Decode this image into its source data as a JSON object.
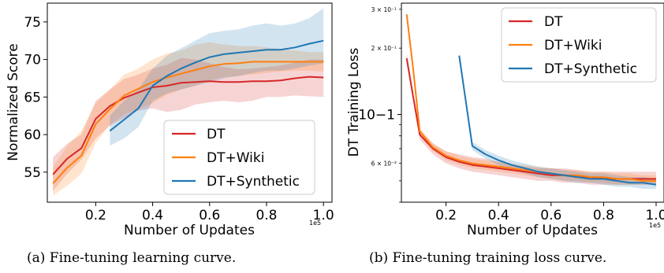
{
  "chart_data": [
    {
      "type": "line",
      "caption": "(a) Fine-tuning learning curve.",
      "xlabel": "Number of Updates",
      "ylabel": "Normalized Score",
      "x_offset_text": "1e5",
      "xlim": [
        0.03,
        1.03
      ],
      "ylim": [
        51,
        77.5
      ],
      "xticks": [
        0.2,
        0.4,
        0.6,
        0.8,
        1.0
      ],
      "xtick_labels": [
        "0.2",
        "0.4",
        "0.6",
        "0.8",
        "1.0"
      ],
      "yticks": [
        55,
        60,
        65,
        70,
        75
      ],
      "ytick_labels": [
        "55",
        "60",
        "65",
        "70",
        "75"
      ],
      "grid": false,
      "legend": "bottom-right",
      "series": [
        {
          "name": "DT",
          "color": "#d62728",
          "x": [
            0.05,
            0.1,
            0.15,
            0.2,
            0.25,
            0.3,
            0.35,
            0.4,
            0.45,
            0.5,
            0.55,
            0.6,
            0.65,
            0.7,
            0.75,
            0.8,
            0.85,
            0.9,
            0.95,
            1.0
          ],
          "y": [
            54.7,
            56.8,
            58.2,
            62.1,
            63.8,
            64.9,
            65.6,
            66.3,
            66.5,
            66.9,
            67.0,
            67.1,
            67.0,
            67.0,
            67.1,
            67.1,
            67.2,
            67.5,
            67.7,
            67.6
          ],
          "lower": [
            52.5,
            54.8,
            56.7,
            59.5,
            61.2,
            62.2,
            63.2,
            63.5,
            63.0,
            63.3,
            64.0,
            64.3,
            64.5,
            64.3,
            64.5,
            65.0,
            65.0,
            65.2,
            65.1,
            65.0
          ],
          "upper": [
            57.0,
            58.8,
            60.0,
            64.5,
            66.0,
            67.4,
            68.0,
            68.8,
            69.3,
            70.2,
            70.0,
            69.5,
            69.0,
            68.7,
            68.8,
            69.0,
            69.2,
            69.6,
            70.0,
            70.0
          ]
        },
        {
          "name": "DT+Wiki",
          "color": "#ff7f0e",
          "x": [
            0.05,
            0.1,
            0.15,
            0.2,
            0.25,
            0.3,
            0.35,
            0.4,
            0.45,
            0.5,
            0.55,
            0.6,
            0.65,
            0.7,
            0.75,
            0.8,
            0.85,
            0.9,
            0.95,
            1.0
          ],
          "y": [
            53.5,
            55.6,
            57.2,
            61.4,
            63.4,
            65.2,
            66.1,
            67.0,
            67.6,
            68.1,
            68.6,
            69.1,
            69.4,
            69.5,
            69.7,
            69.7,
            69.7,
            69.7,
            69.7,
            69.7
          ],
          "lower": [
            51.9,
            53.2,
            54.8,
            58.9,
            61.3,
            62.7,
            63.4,
            64.2,
            65.3,
            66.0,
            66.5,
            67.2,
            67.7,
            67.8,
            68.0,
            68.2,
            68.4,
            68.5,
            68.5,
            68.4
          ],
          "upper": [
            55.7,
            58.5,
            60.5,
            64.2,
            66.0,
            68.0,
            68.8,
            70.0,
            70.8,
            71.2,
            72.0,
            72.3,
            72.0,
            71.8,
            71.8,
            71.6,
            71.4,
            71.2,
            71.0,
            71.0
          ]
        },
        {
          "name": "DT+Synthetic",
          "color": "#1f77b4",
          "x": [
            0.25,
            0.3,
            0.35,
            0.4,
            0.45,
            0.5,
            0.55,
            0.6,
            0.65,
            0.7,
            0.75,
            0.8,
            0.85,
            0.9,
            0.95,
            1.0
          ],
          "y": [
            60.5,
            62.0,
            63.5,
            66.5,
            67.8,
            68.8,
            69.6,
            70.3,
            70.7,
            70.9,
            71.1,
            71.3,
            71.3,
            71.6,
            72.1,
            72.5
          ],
          "lower": [
            58.5,
            59.5,
            61.0,
            64.5,
            65.5,
            66.0,
            66.5,
            67.0,
            67.5,
            67.8,
            68.2,
            68.5,
            68.5,
            68.8,
            69.2,
            69.5
          ],
          "upper": [
            62.5,
            64.5,
            66.0,
            68.8,
            70.5,
            71.5,
            72.5,
            73.5,
            73.8,
            74.0,
            74.5,
            74.8,
            74.5,
            74.8,
            75.5,
            76.8
          ]
        }
      ]
    },
    {
      "type": "line",
      "caption": "(b) Fine-tuning training loss curve.",
      "xlabel": "Number of Updates",
      "ylabel": "DT Training Loss",
      "x_offset_text": "1e5",
      "yscale": "log",
      "xlim": [
        0.03,
        1.03
      ],
      "ylim": [
        0.04,
        0.32
      ],
      "xticks": [
        0.2,
        0.4,
        0.6,
        0.8,
        1.0
      ],
      "xtick_labels": [
        "0.2",
        "0.4",
        "0.6",
        "0.8",
        "1.0"
      ],
      "yticks": [
        0.1
      ],
      "ytick_labels": [
        "10−1"
      ],
      "yminor_ticks": [
        0.06,
        0.2,
        0.3
      ],
      "yminor_tick_labels": [
        "6 × 10⁻²",
        "2 × 10⁻¹",
        "3 × 10⁻¹"
      ],
      "grid": false,
      "legend": "top-right",
      "series": [
        {
          "name": "DT",
          "color": "#d62728",
          "x": [
            0.05,
            0.075,
            0.1,
            0.15,
            0.2,
            0.25,
            0.3,
            0.35,
            0.4,
            0.45,
            0.5,
            0.55,
            0.6,
            0.65,
            0.7,
            0.75,
            0.8,
            0.85,
            0.9,
            0.95,
            1.0
          ],
          "y": [
            0.18,
            0.12,
            0.081,
            0.07,
            0.064,
            0.061,
            0.059,
            0.058,
            0.057,
            0.056,
            0.055,
            0.054,
            0.053,
            0.053,
            0.052,
            0.052,
            0.051,
            0.051,
            0.051,
            0.051,
            0.051
          ],
          "lower": [
            0.17,
            0.115,
            0.077,
            0.066,
            0.06,
            0.057,
            0.055,
            0.054,
            0.053,
            0.052,
            0.051,
            0.05,
            0.05,
            0.049,
            0.049,
            0.048,
            0.048,
            0.048,
            0.048,
            0.048,
            0.048
          ],
          "upper": [
            0.19,
            0.126,
            0.085,
            0.074,
            0.068,
            0.066,
            0.064,
            0.063,
            0.061,
            0.059,
            0.058,
            0.057,
            0.057,
            0.057,
            0.056,
            0.055,
            0.055,
            0.055,
            0.055,
            0.055,
            0.055
          ]
        },
        {
          "name": "DT+Wiki",
          "color": "#ff7f0e",
          "x": [
            0.05,
            0.075,
            0.1,
            0.15,
            0.2,
            0.25,
            0.3,
            0.35,
            0.4,
            0.45,
            0.5,
            0.55,
            0.6,
            0.65,
            0.7,
            0.75,
            0.8,
            0.85,
            0.9,
            0.95,
            1.0
          ],
          "y": [
            0.285,
            0.16,
            0.084,
            0.071,
            0.065,
            0.062,
            0.06,
            0.059,
            0.058,
            0.057,
            0.056,
            0.055,
            0.054,
            0.053,
            0.053,
            0.052,
            0.052,
            0.051,
            0.051,
            0.05,
            0.05
          ],
          "lower": [
            0.275,
            0.155,
            0.081,
            0.068,
            0.062,
            0.059,
            0.057,
            0.056,
            0.055,
            0.054,
            0.053,
            0.052,
            0.051,
            0.05,
            0.05,
            0.049,
            0.049,
            0.048,
            0.048,
            0.048,
            0.048
          ],
          "upper": [
            0.295,
            0.165,
            0.087,
            0.074,
            0.068,
            0.065,
            0.063,
            0.062,
            0.061,
            0.06,
            0.059,
            0.058,
            0.057,
            0.056,
            0.056,
            0.055,
            0.055,
            0.054,
            0.054,
            0.053,
            0.053
          ]
        },
        {
          "name": "DT+Synthetic",
          "color": "#1f77b4",
          "x": [
            0.25,
            0.3,
            0.35,
            0.4,
            0.45,
            0.5,
            0.55,
            0.6,
            0.65,
            0.7,
            0.75,
            0.8,
            0.85,
            0.9,
            0.95,
            1.0
          ],
          "y": [
            0.185,
            0.072,
            0.066,
            0.062,
            0.059,
            0.057,
            0.055,
            0.054,
            0.053,
            0.052,
            0.051,
            0.051,
            0.05,
            0.049,
            0.049,
            0.048
          ],
          "lower": [
            0.18,
            0.069,
            0.063,
            0.059,
            0.056,
            0.054,
            0.052,
            0.051,
            0.05,
            0.049,
            0.049,
            0.048,
            0.047,
            0.047,
            0.046,
            0.046
          ],
          "upper": [
            0.19,
            0.075,
            0.069,
            0.065,
            0.062,
            0.06,
            0.058,
            0.057,
            0.056,
            0.055,
            0.054,
            0.054,
            0.053,
            0.052,
            0.052,
            0.051
          ]
        }
      ]
    }
  ]
}
